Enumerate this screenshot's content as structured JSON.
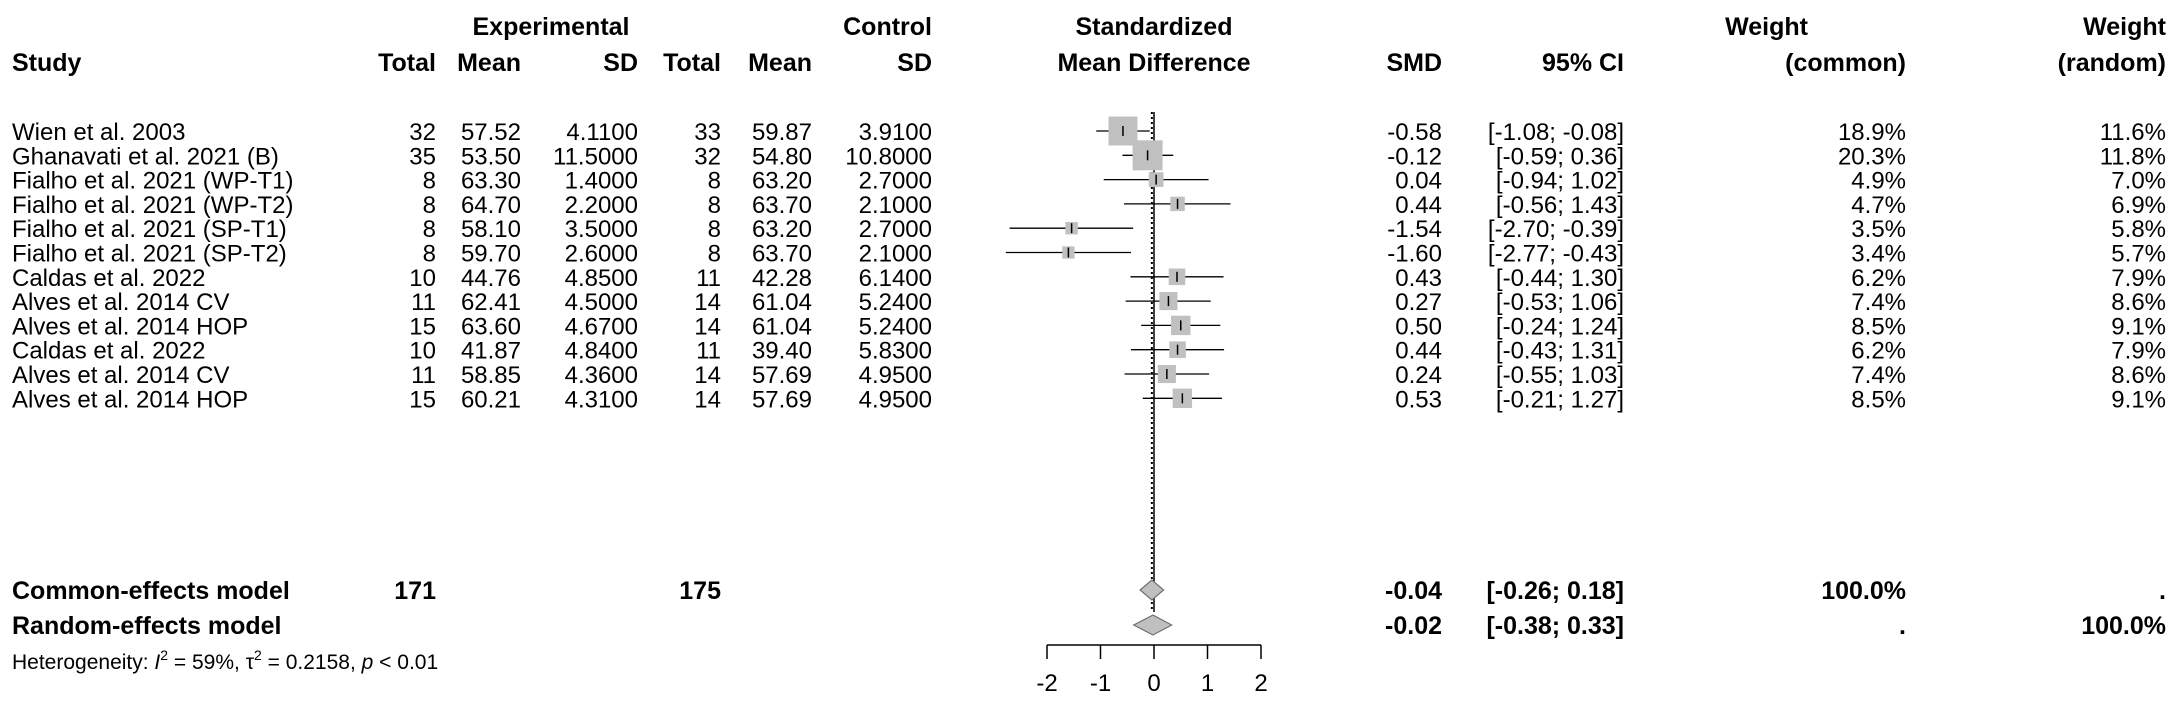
{
  "headers": {
    "study": "Study",
    "experimental": "Experimental",
    "control": "Control",
    "total": "Total",
    "mean": "Mean",
    "sd": "SD",
    "smd_title_1": "Standardized",
    "smd_title_2": "Mean Difference",
    "smd": "SMD",
    "ci": "95% CI",
    "weight": "Weight",
    "common": "(common)",
    "random": "(random)"
  },
  "chart_data": {
    "type": "forest",
    "x_axis": {
      "range": [
        -2,
        2
      ],
      "ticks": [
        "-2",
        "-1",
        "0",
        "1",
        "2"
      ]
    },
    "studies": [
      {
        "study": "Wien et al. 2003",
        "e_total": "32",
        "e_mean": "57.52",
        "e_sd": "4.1100",
        "c_total": "33",
        "c_mean": "59.87",
        "c_sd": "3.9100",
        "smd": -0.58,
        "lower": -1.08,
        "upper": -0.08,
        "smd_text": "-0.58",
        "ci_text": "[-1.08; -0.08]",
        "w_common": "18.9%",
        "w_random": "11.6%",
        "weight": 18.9
      },
      {
        "study": "Ghanavati et al. 2021 (B)",
        "e_total": "35",
        "e_mean": "53.50",
        "e_sd": "11.5000",
        "c_total": "32",
        "c_mean": "54.80",
        "c_sd": "10.8000",
        "smd": -0.12,
        "lower": -0.59,
        "upper": 0.36,
        "smd_text": "-0.12",
        "ci_text": "[-0.59; 0.36]",
        "w_common": "20.3%",
        "w_random": "11.8%",
        "weight": 20.3
      },
      {
        "study": "Fialho et al. 2021 (WP-T1)",
        "e_total": "8",
        "e_mean": "63.30",
        "e_sd": "1.4000",
        "c_total": "8",
        "c_mean": "63.20",
        "c_sd": "2.7000",
        "smd": 0.04,
        "lower": -0.94,
        "upper": 1.02,
        "smd_text": "0.04",
        "ci_text": "[-0.94; 1.02]",
        "w_common": "4.9%",
        "w_random": "7.0%",
        "weight": 4.9
      },
      {
        "study": "Fialho et al. 2021 (WP-T2)",
        "e_total": "8",
        "e_mean": "64.70",
        "e_sd": "2.2000",
        "c_total": "8",
        "c_mean": "63.70",
        "c_sd": "2.1000",
        "smd": 0.44,
        "lower": -0.56,
        "upper": 1.43,
        "smd_text": "0.44",
        "ci_text": "[-0.56; 1.43]",
        "w_common": "4.7%",
        "w_random": "6.9%",
        "weight": 4.7
      },
      {
        "study": "Fialho et al. 2021 (SP-T1)",
        "e_total": "8",
        "e_mean": "58.10",
        "e_sd": "3.5000",
        "c_total": "8",
        "c_mean": "63.20",
        "c_sd": "2.7000",
        "smd": -1.54,
        "lower": -2.7,
        "upper": -0.39,
        "smd_text": "-1.54",
        "ci_text": "[-2.70; -0.39]",
        "w_common": "3.5%",
        "w_random": "5.8%",
        "weight": 3.5
      },
      {
        "study": "Fialho et al. 2021 (SP-T2)",
        "e_total": "8",
        "e_mean": "59.70",
        "e_sd": "2.6000",
        "c_total": "8",
        "c_mean": "63.70",
        "c_sd": "2.1000",
        "smd": -1.6,
        "lower": -2.77,
        "upper": -0.43,
        "smd_text": "-1.60",
        "ci_text": "[-2.77; -0.43]",
        "w_common": "3.4%",
        "w_random": "5.7%",
        "weight": 3.4
      },
      {
        "study": "Caldas et al. 2022",
        "e_total": "10",
        "e_mean": "44.76",
        "e_sd": "4.8500",
        "c_total": "11",
        "c_mean": "42.28",
        "c_sd": "6.1400",
        "smd": 0.43,
        "lower": -0.44,
        "upper": 1.3,
        "smd_text": "0.43",
        "ci_text": "[-0.44; 1.30]",
        "w_common": "6.2%",
        "w_random": "7.9%",
        "weight": 6.2
      },
      {
        "study": "Alves et al. 2014 CV",
        "e_total": "11",
        "e_mean": "62.41",
        "e_sd": "4.5000",
        "c_total": "14",
        "c_mean": "61.04",
        "c_sd": "5.2400",
        "smd": 0.27,
        "lower": -0.53,
        "upper": 1.06,
        "smd_text": "0.27",
        "ci_text": "[-0.53; 1.06]",
        "w_common": "7.4%",
        "w_random": "8.6%",
        "weight": 7.4
      },
      {
        "study": "Alves et al. 2014 HOP",
        "e_total": "15",
        "e_mean": "63.60",
        "e_sd": "4.6700",
        "c_total": "14",
        "c_mean": "61.04",
        "c_sd": "5.2400",
        "smd": 0.5,
        "lower": -0.24,
        "upper": 1.24,
        "smd_text": "0.50",
        "ci_text": "[-0.24; 1.24]",
        "w_common": "8.5%",
        "w_random": "9.1%",
        "weight": 8.5
      },
      {
        "study": "Caldas et al. 2022",
        "e_total": "10",
        "e_mean": "41.87",
        "e_sd": "4.8400",
        "c_total": "11",
        "c_mean": "39.40",
        "c_sd": "5.8300",
        "smd": 0.44,
        "lower": -0.43,
        "upper": 1.31,
        "smd_text": "0.44",
        "ci_text": "[-0.43; 1.31]",
        "w_common": "6.2%",
        "w_random": "7.9%",
        "weight": 6.2
      },
      {
        "study": "Alves et al. 2014 CV",
        "e_total": "11",
        "e_mean": "58.85",
        "e_sd": "4.3600",
        "c_total": "14",
        "c_mean": "57.69",
        "c_sd": "4.9500",
        "smd": 0.24,
        "lower": -0.55,
        "upper": 1.03,
        "smd_text": "0.24",
        "ci_text": "[-0.55; 1.03]",
        "w_common": "7.4%",
        "w_random": "8.6%",
        "weight": 7.4
      },
      {
        "study": "Alves et al. 2014 HOP",
        "e_total": "15",
        "e_mean": "60.21",
        "e_sd": "4.3100",
        "c_total": "14",
        "c_mean": "57.69",
        "c_sd": "4.9500",
        "smd": 0.53,
        "lower": -0.21,
        "upper": 1.27,
        "smd_text": "0.53",
        "ci_text": "[-0.21; 1.27]",
        "w_common": "8.5%",
        "w_random": "9.1%",
        "weight": 8.5
      }
    ],
    "common": {
      "label": "Common-effects model",
      "e_total": "171",
      "c_total": "175",
      "smd": -0.04,
      "lower": -0.26,
      "upper": 0.18,
      "smd_text": "-0.04",
      "ci_text": "[-0.26; 0.18]",
      "w_common": "100.0%",
      "w_random": "."
    },
    "random": {
      "label": "Random-effects model",
      "smd": -0.02,
      "lower": -0.38,
      "upper": 0.33,
      "smd_text": "-0.02",
      "ci_text": "[-0.38; 0.33]",
      "w_common": ".",
      "w_random": "100.0%"
    },
    "heterogeneity": {
      "prefix": "Heterogeneity: ",
      "i2_symbol": "I",
      "i2_value": " = 59%, ",
      "tau_symbol": "τ",
      "tau_value": " = 0.2158, ",
      "p_symbol": "p",
      "p_value": " < 0.01"
    }
  }
}
